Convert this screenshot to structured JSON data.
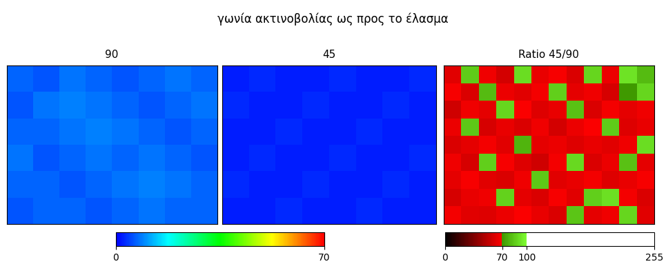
{
  "title": "γωνία ακτινοβολίας ως προς το έλασμα",
  "chart_data": [
    {
      "type": "heatmap",
      "title": "90",
      "tick_labels": false,
      "color_range": [
        0,
        70
      ],
      "color_ticks": [
        0,
        70
      ],
      "cells": [
        [
          7,
          6,
          8,
          7,
          6,
          7,
          8,
          7
        ],
        [
          6,
          8,
          9,
          8,
          7,
          6,
          7,
          8
        ],
        [
          7,
          7,
          8,
          9,
          8,
          7,
          6,
          7
        ],
        [
          8,
          6,
          7,
          8,
          7,
          8,
          7,
          6
        ],
        [
          7,
          7,
          6,
          7,
          8,
          9,
          8,
          7
        ],
        [
          6,
          7,
          7,
          6,
          7,
          8,
          7,
          7
        ]
      ]
    },
    {
      "type": "heatmap",
      "title": "45",
      "tick_labels": false,
      "color_range": [
        0,
        70
      ],
      "color_ticks": [
        0,
        70
      ],
      "cells": [
        [
          2,
          3,
          2,
          2,
          3,
          2,
          2,
          3
        ],
        [
          3,
          2,
          2,
          3,
          2,
          2,
          3,
          2
        ],
        [
          2,
          2,
          3,
          2,
          2,
          3,
          2,
          2
        ],
        [
          2,
          3,
          2,
          2,
          3,
          2,
          2,
          3
        ],
        [
          3,
          2,
          2,
          3,
          2,
          2,
          3,
          2
        ],
        [
          2,
          2,
          3,
          2,
          2,
          3,
          2,
          2
        ]
      ]
    },
    {
      "type": "heatmap",
      "title": "Ratio 45/90",
      "tick_labels": false,
      "color_range": [
        0,
        255
      ],
      "color_ticks": [
        0,
        70,
        100,
        255
      ],
      "cells": [
        [
          62,
          85,
          66,
          58,
          90,
          64,
          68,
          60,
          88,
          65,
          92,
          80
        ],
        [
          68,
          60,
          80,
          65,
          62,
          67,
          86,
          63,
          66,
          59,
          70,
          88
        ],
        [
          57,
          66,
          63,
          88,
          69,
          61,
          64,
          82,
          60,
          67,
          63,
          66
        ],
        [
          65,
          84,
          59,
          64,
          60,
          66,
          58,
          65,
          69,
          85,
          61,
          64
        ],
        [
          60,
          63,
          67,
          62,
          78,
          63,
          65,
          61,
          64,
          62,
          66,
          90
        ],
        [
          66,
          59,
          86,
          68,
          61,
          57,
          67,
          89,
          60,
          65,
          82,
          63
        ],
        [
          63,
          68,
          62,
          60,
          66,
          84,
          62,
          64,
          67,
          61,
          64,
          68
        ],
        [
          59,
          64,
          66,
          87,
          63,
          60,
          68,
          62,
          86,
          91,
          67,
          60
        ],
        [
          67,
          62,
          61,
          65,
          69,
          64,
          60,
          83,
          63,
          66,
          88,
          62
        ]
      ]
    }
  ]
}
